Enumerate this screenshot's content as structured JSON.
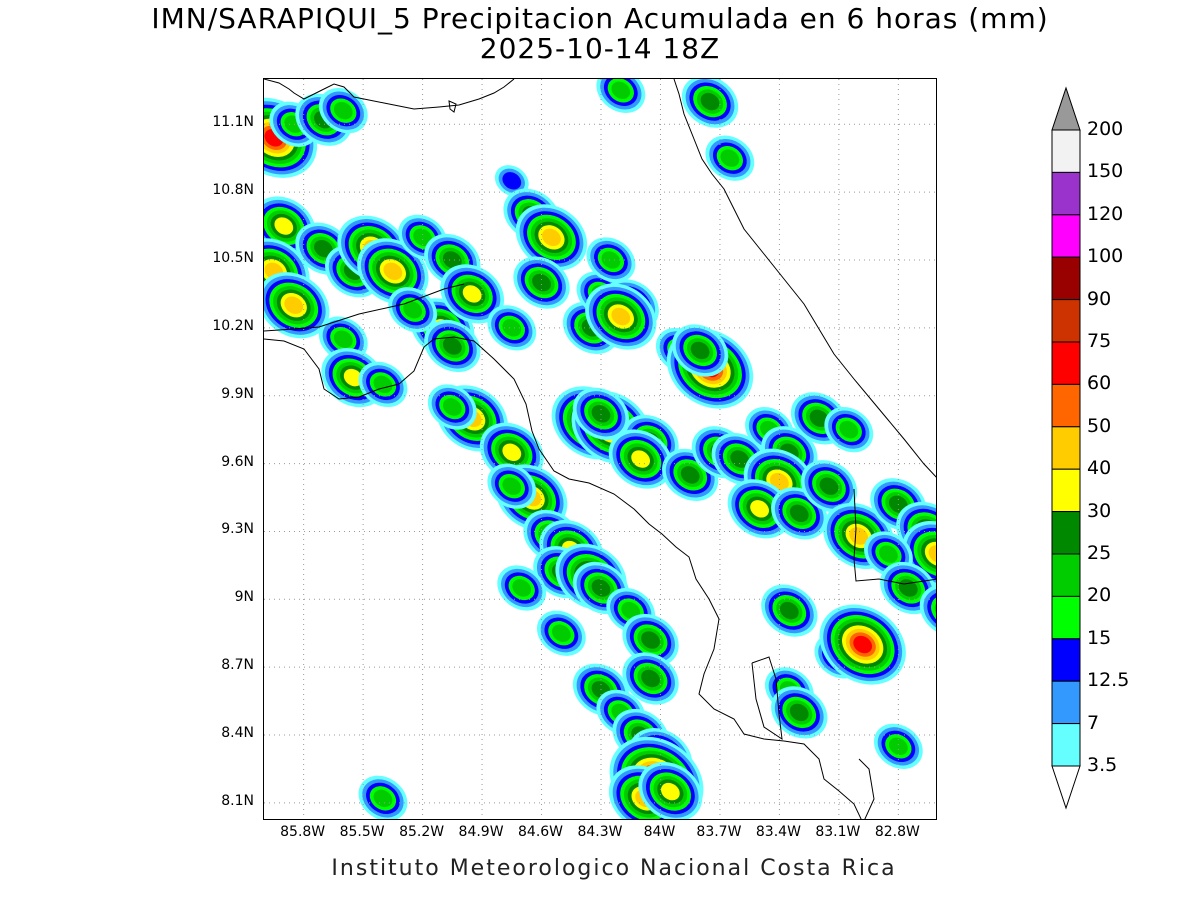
{
  "title_line1": "IMN/SARAPIQUI_5 Precipitacion Acumulada en 6 horas (mm)",
  "title_line2": "2025-10-14 18Z",
  "footer": "Instituto Meteorologico Nacional Costa Rica",
  "lat_ticks": [
    "11.1N",
    "10.8N",
    "10.5N",
    "10.2N",
    "9.9N",
    "9.6N",
    "9.3N",
    "9N",
    "8.7N",
    "8.4N",
    "8.1N"
  ],
  "lon_ticks": [
    "85.8W",
    "85.5W",
    "85.2W",
    "84.9W",
    "84.6W",
    "84.3W",
    "84W",
    "83.7W",
    "83.4W",
    "83.1W",
    "82.8W"
  ],
  "colorbar": {
    "levels": [
      "3.5",
      "7",
      "12.5",
      "15",
      "20",
      "25",
      "30",
      "40",
      "50",
      "60",
      "75",
      "90",
      "100",
      "120",
      "150",
      "200"
    ],
    "colors": [
      "#ffffff",
      "#66ffff",
      "#3399ff",
      "#0000ff",
      "#00ff00",
      "#00cc00",
      "#008800",
      "#ffff00",
      "#ffcc00",
      "#ff6600",
      "#ff0000",
      "#cc3300",
      "#990000",
      "#ff00ff",
      "#9933cc",
      "#f2f2f2",
      "#999999"
    ]
  },
  "precip_cells": [
    {
      "lon": -85.95,
      "lat": 11.04,
      "v": 60
    },
    {
      "lon": -85.85,
      "lat": 11.1,
      "v": 20
    },
    {
      "lon": -85.7,
      "lat": 11.12,
      "v": 25
    },
    {
      "lon": -85.6,
      "lat": 11.16,
      "v": 20
    },
    {
      "lon": -85.9,
      "lat": 10.65,
      "v": 30
    },
    {
      "lon": -85.95,
      "lat": 10.45,
      "v": 40
    },
    {
      "lon": -85.85,
      "lat": 10.3,
      "v": 40
    },
    {
      "lon": -85.7,
      "lat": 10.55,
      "v": 25
    },
    {
      "lon": -85.55,
      "lat": 10.45,
      "v": 25
    },
    {
      "lon": -85.45,
      "lat": 10.55,
      "v": 40
    },
    {
      "lon": -85.35,
      "lat": 10.45,
      "v": 40
    },
    {
      "lon": -85.2,
      "lat": 10.6,
      "v": 20
    },
    {
      "lon": -85.1,
      "lat": 10.2,
      "v": 30
    },
    {
      "lon": -85.25,
      "lat": 10.28,
      "v": 20
    },
    {
      "lon": -85.05,
      "lat": 10.5,
      "v": 25
    },
    {
      "lon": -84.95,
      "lat": 10.35,
      "v": 30
    },
    {
      "lon": -85.6,
      "lat": 10.15,
      "v": 20
    },
    {
      "lon": -85.55,
      "lat": 9.98,
      "v": 30
    },
    {
      "lon": -85.4,
      "lat": 9.95,
      "v": 20
    },
    {
      "lon": -85.05,
      "lat": 10.12,
      "v": 25
    },
    {
      "lon": -84.95,
      "lat": 9.8,
      "v": 40
    },
    {
      "lon": -85.05,
      "lat": 9.85,
      "v": 20
    },
    {
      "lon": -84.75,
      "lat": 10.85,
      "v": 12.5
    },
    {
      "lon": -84.65,
      "lat": 10.7,
      "v": 25
    },
    {
      "lon": -84.55,
      "lat": 10.6,
      "v": 40
    },
    {
      "lon": -84.6,
      "lat": 10.4,
      "v": 25
    },
    {
      "lon": -84.75,
      "lat": 10.2,
      "v": 20
    },
    {
      "lon": -84.35,
      "lat": 10.2,
      "v": 25
    },
    {
      "lon": -84.3,
      "lat": 10.35,
      "v": 20
    },
    {
      "lon": -84.15,
      "lat": 10.3,
      "v": 25
    },
    {
      "lon": -84.25,
      "lat": 10.5,
      "v": 20
    },
    {
      "lon": -84.2,
      "lat": 10.25,
      "v": 40
    },
    {
      "lon": -83.9,
      "lat": 10.1,
      "v": 20
    },
    {
      "lon": -83.75,
      "lat": 10.02,
      "v": 60
    },
    {
      "lon": -83.8,
      "lat": 10.1,
      "v": 25
    },
    {
      "lon": -84.35,
      "lat": 9.78,
      "v": 50
    },
    {
      "lon": -84.25,
      "lat": 9.76,
      "v": 50
    },
    {
      "lon": -84.3,
      "lat": 9.82,
      "v": 25
    },
    {
      "lon": -84.05,
      "lat": 9.7,
      "v": 25
    },
    {
      "lon": -84.1,
      "lat": 9.62,
      "v": 30
    },
    {
      "lon": -83.85,
      "lat": 9.55,
      "v": 25
    },
    {
      "lon": -83.7,
      "lat": 9.65,
      "v": 25
    },
    {
      "lon": -83.6,
      "lat": 9.62,
      "v": 25
    },
    {
      "lon": -83.45,
      "lat": 9.75,
      "v": 20
    },
    {
      "lon": -83.35,
      "lat": 9.65,
      "v": 25
    },
    {
      "lon": -83.4,
      "lat": 9.52,
      "v": 40
    },
    {
      "lon": -83.5,
      "lat": 9.4,
      "v": 30
    },
    {
      "lon": -83.3,
      "lat": 9.38,
      "v": 25
    },
    {
      "lon": -83.15,
      "lat": 9.5,
      "v": 25
    },
    {
      "lon": -83.2,
      "lat": 9.8,
      "v": 25
    },
    {
      "lon": -83.05,
      "lat": 9.75,
      "v": 20
    },
    {
      "lon": -83.0,
      "lat": 9.28,
      "v": 40
    },
    {
      "lon": -82.8,
      "lat": 9.42,
      "v": 25
    },
    {
      "lon": -82.65,
      "lat": 9.3,
      "v": 30
    },
    {
      "lon": -82.6,
      "lat": 9.2,
      "v": 40
    },
    {
      "lon": -82.85,
      "lat": 9.2,
      "v": 20
    },
    {
      "lon": -82.75,
      "lat": 9.05,
      "v": 25
    },
    {
      "lon": -82.55,
      "lat": 8.95,
      "v": 25
    },
    {
      "lon": -84.75,
      "lat": 9.65,
      "v": 30
    },
    {
      "lon": -84.65,
      "lat": 9.45,
      "v": 40
    },
    {
      "lon": -84.75,
      "lat": 9.5,
      "v": 20
    },
    {
      "lon": -84.55,
      "lat": 9.28,
      "v": 25
    },
    {
      "lon": -84.45,
      "lat": 9.22,
      "v": 30
    },
    {
      "lon": -84.5,
      "lat": 9.12,
      "v": 25
    },
    {
      "lon": -84.35,
      "lat": 9.1,
      "v": 40
    },
    {
      "lon": -84.3,
      "lat": 9.05,
      "v": 25
    },
    {
      "lon": -84.15,
      "lat": 8.95,
      "v": 20
    },
    {
      "lon": -84.05,
      "lat": 8.82,
      "v": 25
    },
    {
      "lon": -84.7,
      "lat": 9.05,
      "v": 20
    },
    {
      "lon": -84.5,
      "lat": 8.85,
      "v": 20
    },
    {
      "lon": -84.3,
      "lat": 8.6,
      "v": 25
    },
    {
      "lon": -84.05,
      "lat": 8.65,
      "v": 25
    },
    {
      "lon": -84.2,
      "lat": 8.5,
      "v": 20
    },
    {
      "lon": -84.1,
      "lat": 8.4,
      "v": 25
    },
    {
      "lon": -84.0,
      "lat": 8.3,
      "v": 30
    },
    {
      "lon": -84.02,
      "lat": 8.2,
      "v": 75
    },
    {
      "lon": -84.08,
      "lat": 8.12,
      "v": 40
    },
    {
      "lon": -83.95,
      "lat": 8.15,
      "v": 30
    },
    {
      "lon": -83.35,
      "lat": 8.95,
      "v": 25
    },
    {
      "lon": -83.35,
      "lat": 8.6,
      "v": 20
    },
    {
      "lon": -83.3,
      "lat": 8.5,
      "v": 25
    },
    {
      "lon": -83.1,
      "lat": 8.75,
      "v": 20
    },
    {
      "lon": -82.98,
      "lat": 8.8,
      "v": 60
    },
    {
      "lon": -82.8,
      "lat": 8.35,
      "v": 20
    },
    {
      "lon": -83.75,
      "lat": 11.2,
      "v": 25
    },
    {
      "lon": -84.2,
      "lat": 11.25,
      "v": 20
    },
    {
      "lon": -83.65,
      "lat": 10.95,
      "v": 20
    },
    {
      "lon": -85.4,
      "lat": 8.12,
      "v": 20
    }
  ]
}
